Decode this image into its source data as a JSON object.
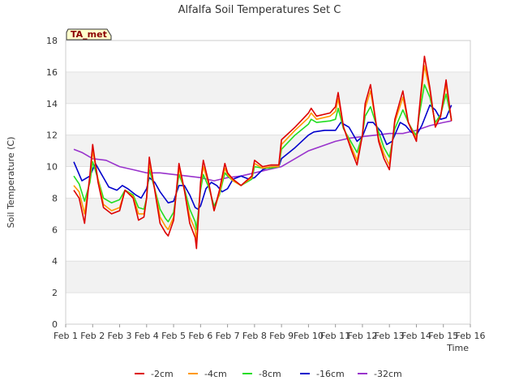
{
  "chart_data": {
    "type": "line",
    "title": "Alfalfa Soil Temperatures Set C",
    "xlabel": "Time",
    "ylabel": "Soil Temperature (C)",
    "badge": "TA_met",
    "ylim": [
      0,
      18
    ],
    "xlim": [
      0,
      15
    ],
    "yticks": [
      0,
      2,
      4,
      6,
      8,
      10,
      12,
      14,
      16,
      18
    ],
    "xticks": [
      {
        "v": 0,
        "label": "Feb 1"
      },
      {
        "v": 1,
        "label": "Feb 2"
      },
      {
        "v": 2,
        "label": "Feb 3"
      },
      {
        "v": 3,
        "label": "Feb 4"
      },
      {
        "v": 4,
        "label": "Feb 5"
      },
      {
        "v": 5,
        "label": "Feb 6"
      },
      {
        "v": 6,
        "label": "Feb 7"
      },
      {
        "v": 7,
        "label": "Feb 8"
      },
      {
        "v": 8,
        "label": "Feb 9"
      },
      {
        "v": 9,
        "label": "Feb 10"
      },
      {
        "v": 10,
        "label": "Feb 11"
      },
      {
        "v": 11,
        "label": "Feb 12"
      },
      {
        "v": 12,
        "label": "Feb 13"
      },
      {
        "v": 13,
        "label": "Feb 14"
      },
      {
        "v": 14,
        "label": "Feb 15"
      },
      {
        "v": 15,
        "label": "Feb 16"
      }
    ],
    "series": [
      {
        "name": "-2cm",
        "color": "#dd0000",
        "x": [
          0.3,
          0.5,
          0.7,
          0.9,
          1.0,
          1.2,
          1.4,
          1.7,
          2.0,
          2.2,
          2.5,
          2.7,
          2.9,
          3.0,
          3.1,
          3.3,
          3.5,
          3.7,
          3.8,
          4.0,
          4.2,
          4.4,
          4.6,
          4.8,
          4.85,
          5.0,
          5.1,
          5.3,
          5.5,
          5.7,
          5.9,
          6.0,
          6.2,
          6.5,
          6.9,
          7.0,
          7.3,
          7.6,
          7.9,
          8.0,
          8.5,
          9.0,
          9.1,
          9.3,
          9.8,
          10.0,
          10.1,
          10.3,
          10.6,
          10.8,
          11.0,
          11.1,
          11.3,
          11.6,
          11.8,
          12.0,
          12.2,
          12.5,
          12.7,
          12.9,
          13.0,
          13.1,
          13.3,
          13.5,
          13.7,
          13.9,
          14.1,
          14.3
        ],
        "y": [
          8.5,
          8.0,
          6.4,
          9.5,
          11.4,
          9.0,
          7.4,
          7.0,
          7.2,
          8.5,
          8.0,
          6.6,
          6.8,
          8.0,
          10.6,
          8.5,
          6.4,
          5.8,
          5.6,
          6.6,
          10.2,
          8.5,
          6.4,
          5.5,
          4.8,
          9.0,
          10.4,
          9.0,
          7.2,
          8.5,
          10.2,
          9.6,
          9.2,
          8.8,
          9.4,
          10.4,
          10.0,
          10.1,
          10.1,
          11.7,
          12.5,
          13.4,
          13.7,
          13.2,
          13.4,
          13.8,
          14.7,
          12.5,
          11.0,
          10.1,
          12.0,
          14.0,
          15.2,
          11.6,
          10.5,
          9.8,
          13.0,
          14.8,
          12.8,
          12.0,
          11.6,
          13.5,
          17.0,
          15.0,
          12.5,
          13.2,
          15.5,
          12.9
        ]
      },
      {
        "name": "-4cm",
        "color": "#ff9900",
        "x": [
          0.3,
          0.5,
          0.7,
          0.9,
          1.0,
          1.2,
          1.4,
          1.7,
          2.0,
          2.2,
          2.5,
          2.7,
          2.9,
          3.0,
          3.1,
          3.3,
          3.5,
          3.7,
          3.8,
          4.0,
          4.2,
          4.4,
          4.6,
          4.8,
          4.85,
          5.0,
          5.1,
          5.3,
          5.5,
          5.7,
          5.9,
          6.0,
          6.2,
          6.5,
          6.9,
          7.0,
          7.3,
          7.6,
          7.9,
          8.0,
          8.5,
          9.0,
          9.1,
          9.3,
          9.8,
          10.0,
          10.1,
          10.3,
          10.6,
          10.8,
          11.0,
          11.1,
          11.3,
          11.6,
          11.8,
          12.0,
          12.2,
          12.5,
          12.7,
          12.9,
          13.0,
          13.1,
          13.3,
          13.5,
          13.7,
          13.9,
          14.1,
          14.3
        ],
        "y": [
          8.8,
          8.4,
          7.0,
          9.3,
          11.0,
          9.2,
          7.6,
          7.2,
          7.4,
          8.5,
          8.1,
          7.0,
          7.0,
          8.0,
          10.2,
          8.6,
          6.8,
          6.2,
          6.0,
          6.8,
          9.9,
          8.5,
          6.8,
          6.0,
          5.3,
          8.8,
          10.0,
          8.9,
          7.2,
          8.3,
          9.9,
          9.5,
          9.1,
          8.8,
          9.3,
          10.2,
          9.9,
          10.0,
          10.0,
          11.4,
          12.3,
          13.1,
          13.4,
          13.0,
          13.2,
          13.5,
          14.3,
          12.5,
          11.2,
          10.4,
          12.0,
          13.7,
          14.8,
          11.8,
          10.8,
          10.1,
          12.8,
          14.4,
          12.8,
          12.1,
          11.8,
          13.4,
          16.4,
          14.8,
          12.6,
          13.2,
          15.2,
          12.9
        ]
      },
      {
        "name": "-8cm",
        "color": "#22dd22",
        "x": [
          0.3,
          0.5,
          0.7,
          0.9,
          1.0,
          1.2,
          1.4,
          1.7,
          2.0,
          2.2,
          2.5,
          2.7,
          2.9,
          3.0,
          3.1,
          3.3,
          3.5,
          3.7,
          3.8,
          4.0,
          4.2,
          4.4,
          4.6,
          4.8,
          4.85,
          5.0,
          5.1,
          5.3,
          5.5,
          5.7,
          5.9,
          6.0,
          6.2,
          6.5,
          6.9,
          7.0,
          7.3,
          7.6,
          7.9,
          8.0,
          8.5,
          9.0,
          9.1,
          9.3,
          9.8,
          10.0,
          10.1,
          10.3,
          10.6,
          10.8,
          11.0,
          11.1,
          11.3,
          11.6,
          11.8,
          12.0,
          12.2,
          12.5,
          12.7,
          12.9,
          13.0,
          13.1,
          13.3,
          13.5,
          13.7,
          13.9,
          14.1,
          14.3
        ],
        "y": [
          9.4,
          8.9,
          7.8,
          9.0,
          10.3,
          9.2,
          8.0,
          7.7,
          7.9,
          8.5,
          8.2,
          7.4,
          7.3,
          8.0,
          9.8,
          8.6,
          7.3,
          6.7,
          6.5,
          7.1,
          9.5,
          8.6,
          7.3,
          6.5,
          6.0,
          8.5,
          9.5,
          8.7,
          7.5,
          8.2,
          9.6,
          9.4,
          9.1,
          8.8,
          9.2,
          10.0,
          9.9,
          9.9,
          10.0,
          11.1,
          12.0,
          12.7,
          13.0,
          12.8,
          12.9,
          13.0,
          13.7,
          12.4,
          11.5,
          10.9,
          12.0,
          13.2,
          13.8,
          12.2,
          11.2,
          10.6,
          12.4,
          13.6,
          12.8,
          12.2,
          12.0,
          13.2,
          15.2,
          14.4,
          12.8,
          13.3,
          14.6,
          13.0
        ]
      },
      {
        "name": "-16cm",
        "color": "#0000cc",
        "x": [
          0.3,
          0.6,
          0.9,
          1.1,
          1.3,
          1.6,
          1.9,
          2.1,
          2.3,
          2.6,
          2.8,
          3.0,
          3.1,
          3.3,
          3.5,
          3.8,
          4.0,
          4.2,
          4.4,
          4.6,
          4.8,
          4.9,
          5.0,
          5.2,
          5.4,
          5.6,
          5.8,
          6.0,
          6.2,
          6.5,
          6.8,
          7.0,
          7.3,
          7.6,
          7.9,
          8.0,
          8.5,
          9.0,
          9.2,
          9.6,
          10.0,
          10.2,
          10.5,
          10.8,
          11.0,
          11.2,
          11.4,
          11.7,
          11.9,
          12.1,
          12.4,
          12.6,
          12.8,
          13.0,
          13.2,
          13.5,
          13.7,
          13.9,
          14.1,
          14.3
        ],
        "y": [
          10.3,
          9.1,
          9.4,
          10.2,
          9.6,
          8.7,
          8.5,
          8.8,
          8.6,
          8.2,
          8.0,
          8.6,
          9.3,
          9.0,
          8.4,
          7.7,
          7.8,
          8.8,
          8.8,
          8.2,
          7.4,
          7.3,
          7.5,
          8.6,
          9.0,
          8.8,
          8.4,
          8.6,
          9.2,
          9.4,
          9.2,
          9.3,
          9.8,
          10.0,
          10.0,
          10.5,
          11.2,
          12.0,
          12.2,
          12.3,
          12.3,
          12.8,
          12.5,
          11.6,
          11.9,
          12.8,
          12.8,
          12.2,
          11.4,
          11.6,
          12.8,
          12.6,
          12.2,
          12.0,
          12.6,
          13.9,
          13.6,
          13.0,
          13.1,
          13.9
        ]
      },
      {
        "name": "-32cm",
        "color": "#9933cc",
        "x": [
          0.3,
          0.6,
          1.0,
          1.5,
          2.0,
          2.5,
          3.0,
          3.5,
          4.0,
          4.5,
          5.0,
          5.5,
          6.0,
          6.5,
          7.0,
          7.5,
          8.0,
          8.5,
          9.0,
          9.5,
          10.0,
          10.5,
          11.0,
          11.5,
          12.0,
          12.5,
          13.0,
          13.5,
          14.0,
          14.3
        ],
        "y": [
          11.1,
          10.9,
          10.5,
          10.4,
          10.0,
          9.8,
          9.6,
          9.6,
          9.5,
          9.4,
          9.3,
          9.1,
          9.3,
          9.4,
          9.6,
          9.8,
          10.0,
          10.5,
          11.0,
          11.3,
          11.6,
          11.8,
          11.9,
          12.0,
          12.1,
          12.1,
          12.3,
          12.6,
          12.8,
          12.9
        ]
      }
    ]
  }
}
